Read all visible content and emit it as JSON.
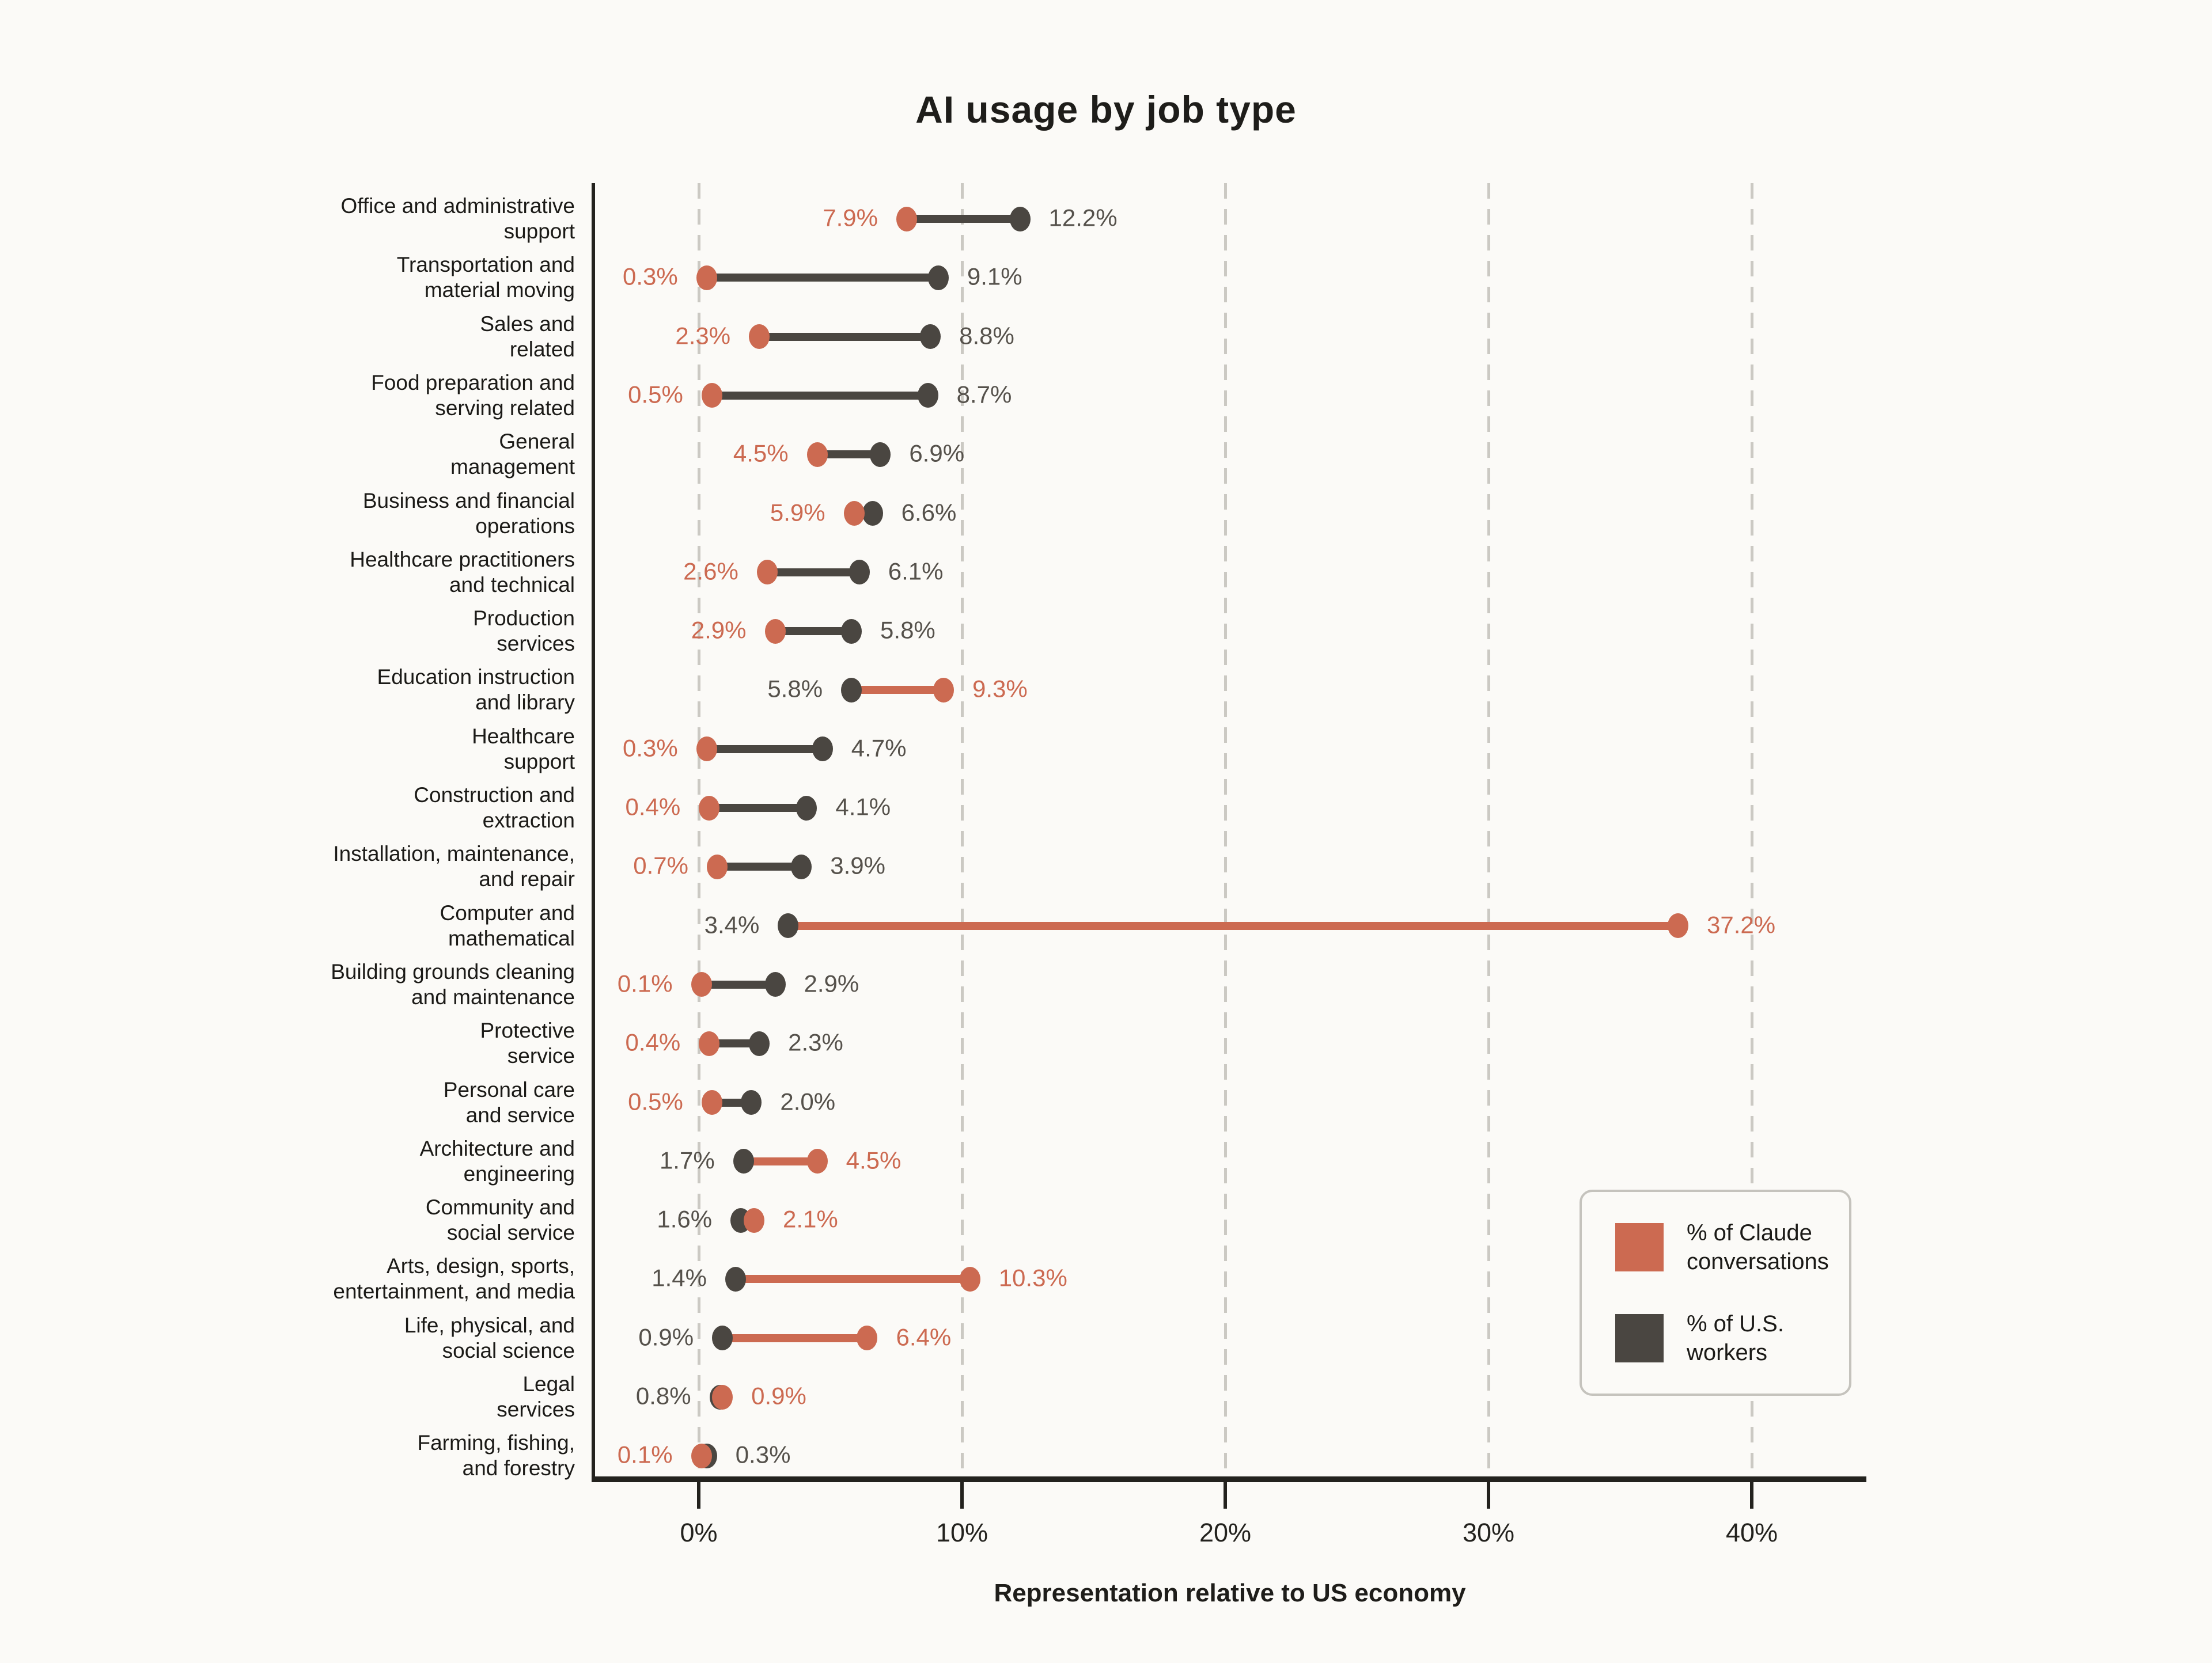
{
  "title": "AI usage by job type",
  "colors": {
    "background": "#FBFAF7",
    "claude_orange": "#CC6A51",
    "workers_dark": "#4A4641",
    "workers_value_text": "#55514B",
    "gridline": "#CBC9C3",
    "axis": "#23221E",
    "text": "#1B1A17",
    "legend_border": "#C5C3BD"
  },
  "chart_data": {
    "type": "scatter",
    "variant": "horizontal-dumbbell",
    "title": "AI usage by job type",
    "xlabel": "Representation relative to US economy",
    "ylabel": "",
    "xlim": [
      -4,
      44.5
    ],
    "grid": "dashed-vertical",
    "x_ticks": [
      {
        "value": 0,
        "label": "0%"
      },
      {
        "value": 10,
        "label": "10%"
      },
      {
        "value": 20,
        "label": "20%"
      },
      {
        "value": 30,
        "label": "30%"
      },
      {
        "value": 40,
        "label": "40%"
      }
    ],
    "legend": {
      "position": "lower-right",
      "entries": [
        {
          "label": "% of Claude conversations",
          "color": "#CC6A51"
        },
        {
          "label": "% of U.S. workers",
          "color": "#4A4641"
        }
      ]
    },
    "categories": [
      {
        "label": "Office and administrative support",
        "lines": [
          "Office and administrative",
          "support"
        ]
      },
      {
        "label": "Transportation and material moving",
        "lines": [
          "Transportation and",
          "material moving"
        ]
      },
      {
        "label": "Sales and related",
        "lines": [
          "Sales and",
          "related"
        ]
      },
      {
        "label": "Food preparation and serving related",
        "lines": [
          "Food preparation and",
          "serving related"
        ]
      },
      {
        "label": "General management",
        "lines": [
          "General",
          "management"
        ]
      },
      {
        "label": "Business and financial operations",
        "lines": [
          "Business and financial",
          "operations"
        ]
      },
      {
        "label": "Healthcare practitioners and technical",
        "lines": [
          "Healthcare practitioners",
          "and technical"
        ]
      },
      {
        "label": "Production services",
        "lines": [
          "Production",
          "services"
        ]
      },
      {
        "label": "Education instruction and library",
        "lines": [
          "Education instruction",
          "and library"
        ]
      },
      {
        "label": "Healthcare support",
        "lines": [
          "Healthcare",
          "support"
        ]
      },
      {
        "label": "Construction and extraction",
        "lines": [
          "Construction and",
          "extraction"
        ]
      },
      {
        "label": "Installation, maintenance, and repair",
        "lines": [
          "Installation, maintenance,",
          "and repair"
        ]
      },
      {
        "label": "Computer and mathematical",
        "lines": [
          "Computer and",
          "mathematical"
        ]
      },
      {
        "label": "Building grounds cleaning and maintenance",
        "lines": [
          "Building grounds cleaning",
          "and maintenance"
        ]
      },
      {
        "label": "Protective service",
        "lines": [
          "Protective",
          "service"
        ]
      },
      {
        "label": "Personal care and service",
        "lines": [
          "Personal care",
          "and service"
        ]
      },
      {
        "label": "Architecture and engineering",
        "lines": [
          "Architecture and",
          "engineering"
        ]
      },
      {
        "label": "Community and social service",
        "lines": [
          "Community and",
          "social service"
        ]
      },
      {
        "label": "Arts, design, sports, entertainment, and media",
        "lines": [
          "Arts, design, sports,",
          "entertainment, and media"
        ]
      },
      {
        "label": "Life, physical, and social science",
        "lines": [
          "Life, physical, and",
          "social science"
        ]
      },
      {
        "label": "Legal services",
        "lines": [
          "Legal",
          "services"
        ]
      },
      {
        "label": "Farming, fishing, and forestry",
        "lines": [
          "Farming, fishing,",
          "and forestry"
        ]
      }
    ],
    "series": [
      {
        "name": "% of Claude conversations",
        "color": "#CC6A51",
        "value_label_color": "#CC6A51",
        "values": [
          7.9,
          0.3,
          2.3,
          0.5,
          4.5,
          5.9,
          2.6,
          2.9,
          9.3,
          0.3,
          0.4,
          0.7,
          37.2,
          0.1,
          0.4,
          0.5,
          4.5,
          2.1,
          10.3,
          6.4,
          0.9,
          0.1
        ]
      },
      {
        "name": "% of U.S. workers",
        "color": "#4A4641",
        "value_label_color": "#55514B",
        "values": [
          12.2,
          9.1,
          8.8,
          8.7,
          6.9,
          6.6,
          6.1,
          5.8,
          5.8,
          4.7,
          4.1,
          3.9,
          3.4,
          2.9,
          2.3,
          2.0,
          1.7,
          1.6,
          1.4,
          0.9,
          0.8,
          0.3
        ]
      }
    ],
    "value_label_format": "{value}%"
  }
}
